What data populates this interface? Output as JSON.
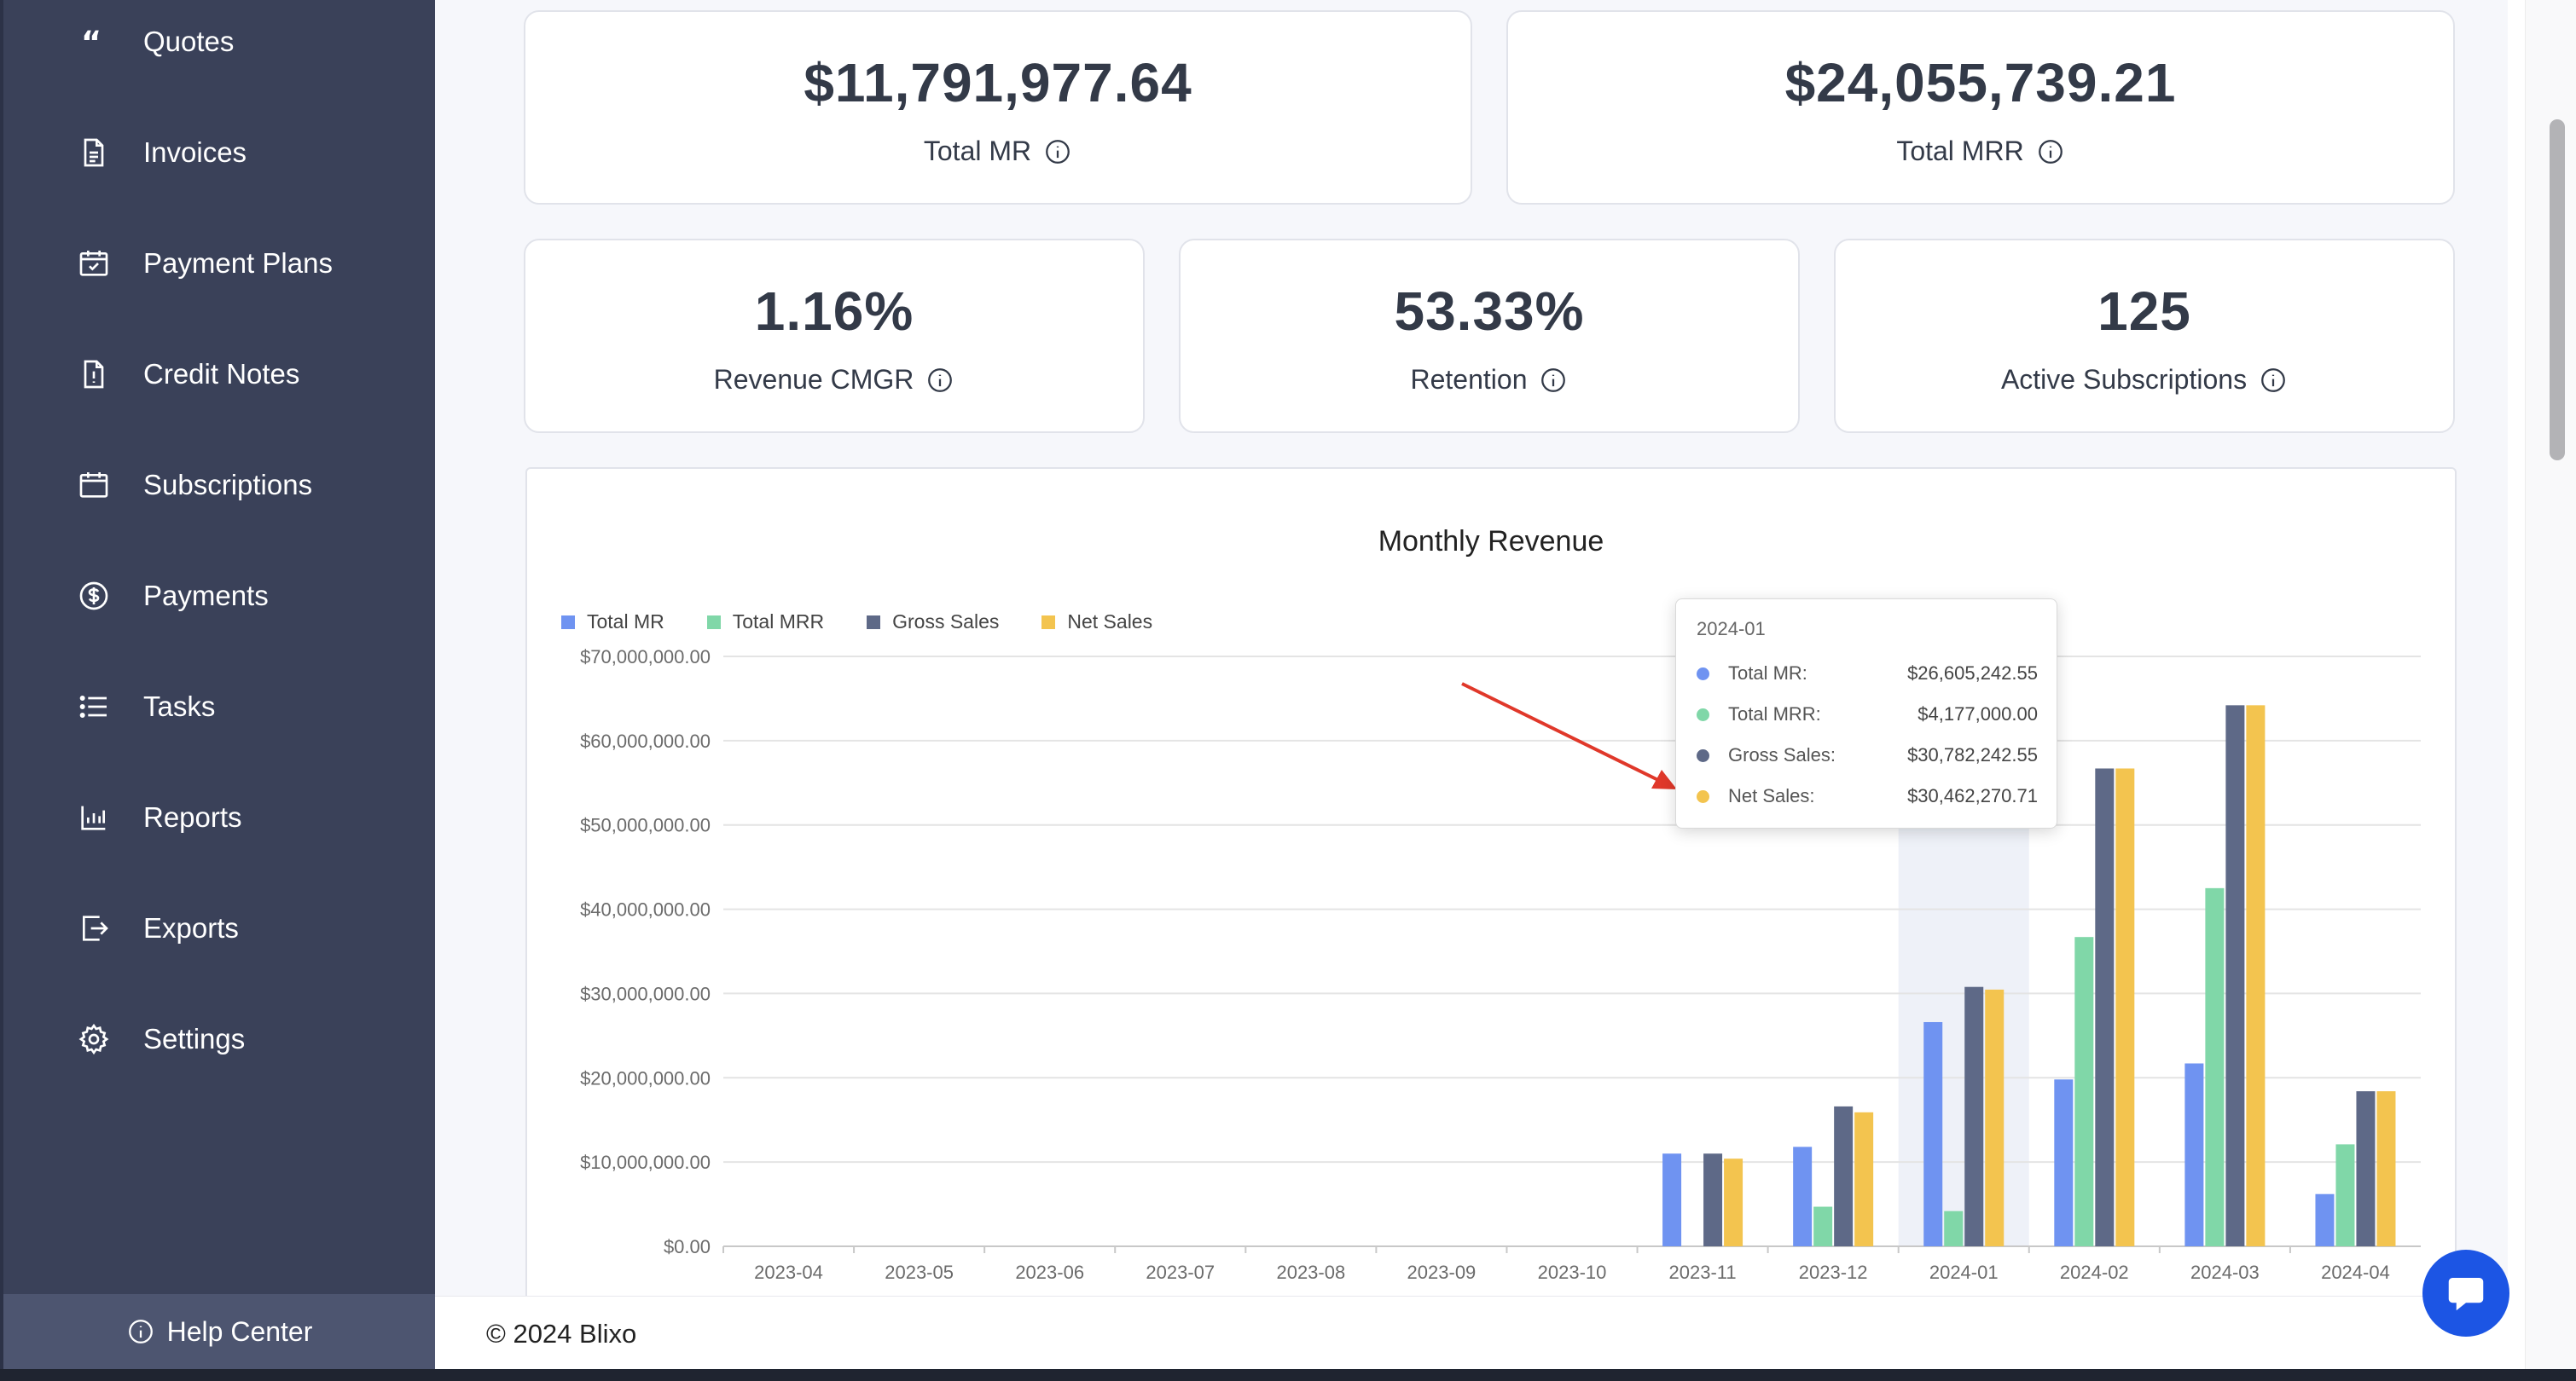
{
  "sidebar": {
    "items": [
      {
        "label": "Quotes",
        "icon": "quote-icon"
      },
      {
        "label": "Invoices",
        "icon": "invoice-icon"
      },
      {
        "label": "Payment Plans",
        "icon": "calendar-check-icon"
      },
      {
        "label": "Credit Notes",
        "icon": "document-icon"
      },
      {
        "label": "Subscriptions",
        "icon": "calendar-icon"
      },
      {
        "label": "Payments",
        "icon": "dollar-circle-icon"
      },
      {
        "label": "Tasks",
        "icon": "list-icon"
      },
      {
        "label": "Reports",
        "icon": "bar-chart-icon"
      },
      {
        "label": "Exports",
        "icon": "export-icon"
      },
      {
        "label": "Settings",
        "icon": "gear-icon"
      }
    ],
    "help_center": "Help Center"
  },
  "stats": {
    "total_mr": {
      "value": "$11,791,977.64",
      "label": "Total MR"
    },
    "total_mrr": {
      "value": "$24,055,739.21",
      "label": "Total MRR"
    },
    "revenue_cmgr": {
      "value": "1.16%",
      "label": "Revenue CMGR"
    },
    "retention": {
      "value": "53.33%",
      "label": "Retention"
    },
    "active_subscriptions": {
      "value": "125",
      "label": "Active Subscriptions"
    }
  },
  "colors": {
    "sidebar_bg": "#3a4159",
    "total_mr": "#6f93f1",
    "total_mrr": "#80d7a8",
    "gross_sales": "#5e6987",
    "net_sales": "#f3c44f",
    "chat_button": "#1c55e4",
    "annotation_arrow": "#e0382a"
  },
  "chart_data": {
    "type": "bar",
    "title": "Monthly Revenue",
    "categories": [
      "2023-04",
      "2023-05",
      "2023-06",
      "2023-07",
      "2023-08",
      "2023-09",
      "2023-10",
      "2023-11",
      "2023-12",
      "2024-01",
      "2024-02",
      "2024-03",
      "2024-04"
    ],
    "series": [
      {
        "name": "Total MR",
        "values": [
          0,
          0,
          0,
          0,
          0,
          0,
          0,
          11000000,
          11800000,
          26605242.55,
          19800000,
          21700000,
          6200000
        ]
      },
      {
        "name": "Total MRR",
        "values": [
          0,
          0,
          0,
          0,
          0,
          0,
          0,
          0,
          4700000,
          4177000.0,
          36700000,
          42500000,
          12100000
        ]
      },
      {
        "name": "Gross Sales",
        "values": [
          0,
          0,
          0,
          0,
          0,
          0,
          0,
          11000000,
          16600000,
          30782242.55,
          56700000,
          64200000,
          18400000
        ]
      },
      {
        "name": "Net Sales",
        "values": [
          0,
          0,
          0,
          0,
          0,
          0,
          0,
          10400000,
          15900000,
          30462270.71,
          56700000,
          64200000,
          18400000
        ]
      }
    ],
    "yticks": [
      "$0.00",
      "$10,000,000.00",
      "$20,000,000.00",
      "$30,000,000.00",
      "$40,000,000.00",
      "$50,000,000.00",
      "$60,000,000.00",
      "$70,000,000.00"
    ],
    "ylim": [
      0,
      70000000
    ],
    "grid": true,
    "legend_position": "top-left",
    "highlighted_category": "2024-01",
    "tooltip": {
      "title": "2024-01",
      "rows": [
        {
          "name": "Total MR:",
          "value": "$26,605,242.55"
        },
        {
          "name": "Total MRR:",
          "value": "$4,177,000.00"
        },
        {
          "name": "Gross Sales:",
          "value": "$30,782,242.55"
        },
        {
          "name": "Net Sales:",
          "value": "$30,462,270.71"
        }
      ]
    }
  },
  "footer": {
    "copyright": "© 2024 Blixo"
  }
}
